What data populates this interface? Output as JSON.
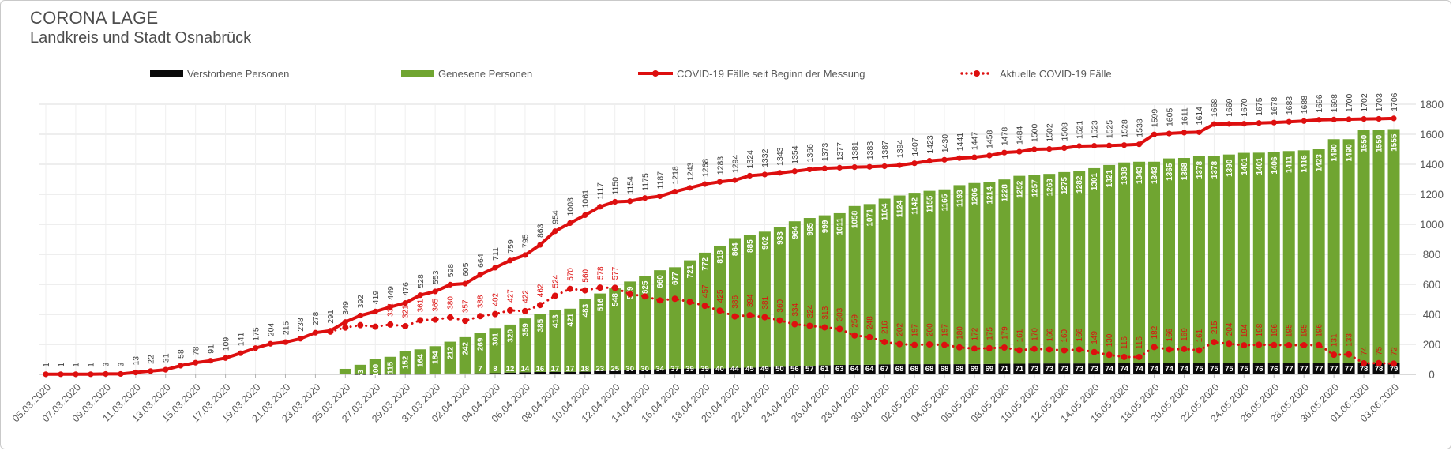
{
  "header": {
    "title": "CORONA LAGE",
    "subtitle": "Landkreis und Stadt Osnabrück"
  },
  "legend": {
    "deceased": "Verstorbene Personen",
    "recovered": "Genesene Personen",
    "total": "COVID-19 Fälle seit Beginn der Messung",
    "active": "Aktuelle COVID-19 Fälle"
  },
  "colors": {
    "bar_recovered": "#70a531",
    "bar_deceased": "#0a0a0a",
    "line_total": "#dd0f0f",
    "line_active": "#dd0f0f",
    "grid": "#dcdcdc",
    "grid_vertical": "#efefef",
    "axis_line": "#b3b3b3",
    "axis_text": "#595959",
    "line_label": "#404040",
    "bar_label": "#ffffff"
  },
  "chart_data": {
    "type": "combo-stacked-bar-line",
    "title": "CORONA LAGE - Landkreis und Stadt Osnabrück",
    "ylim": [
      0,
      1800
    ],
    "y_ticks": [
      0,
      200,
      400,
      600,
      800,
      1000,
      1200,
      1400,
      1600,
      1800
    ],
    "n_points": 91,
    "x_tick_every": 2,
    "x_tick_labels": [
      "05.03.2020",
      "07.03.2020",
      "09.03.2020",
      "11.03.2020",
      "13.03.2020",
      "15.03.2020",
      "17.03.2020",
      "19.03.2020",
      "21.03.2020",
      "23.03.2020",
      "25.03.2020",
      "27.03.2020",
      "29.03.2020",
      "31.03.2020",
      "02.04.2020",
      "04.04.2020",
      "06.04.2020",
      "08.04.2020",
      "10.04.2020",
      "12.04.2020",
      "14.04.2020",
      "16.04.2020",
      "18.04.2020",
      "20.04.2020",
      "22.04.2020",
      "24.04.2020",
      "26.04.2020",
      "28.04.2020",
      "30.04.2020",
      "02.05.2020",
      "04.05.2020",
      "06.05.2020",
      "08.05.2020",
      "10.05.2020",
      "12.05.2020",
      "14.05.2020",
      "16.05.2020",
      "18.05.2020",
      "20.05.2020",
      "22.05.2020",
      "24.05.2020",
      "26.05.2020",
      "28.05.2020",
      "30.05.2020",
      "01.06.2020",
      "03.06.2020"
    ],
    "series": [
      {
        "name": "COVID-19 Fälle seit Beginn der Messung",
        "type": "line",
        "start_index": 0,
        "values": [
          1,
          1,
          1,
          1,
          3,
          3,
          13,
          22,
          31,
          58,
          78,
          91,
          109,
          141,
          175,
          204,
          215,
          238,
          278,
          291,
          349,
          392,
          419,
          449,
          476,
          528,
          553,
          598,
          605,
          664,
          711,
          759,
          795,
          863,
          954,
          1008,
          1061,
          1117,
          1150,
          1154,
          1175,
          1187,
          1218,
          1243,
          1268,
          1283,
          1294,
          1324,
          1332,
          1343,
          1354,
          1366,
          1373,
          1377,
          1381,
          1383,
          1387,
          1394,
          1407,
          1423,
          1430,
          1441,
          1447,
          1458,
          1478,
          1484,
          1500,
          1502,
          1508,
          1521,
          1523,
          1525,
          1528,
          1533,
          1599,
          1605,
          1611,
          1614,
          1668,
          1669,
          1670,
          1675,
          1678,
          1683,
          1688,
          1696,
          1698,
          1700,
          1702,
          1703,
          1706
        ]
      },
      {
        "name": "Aktuelle COVID-19 Fälle",
        "type": "line-dotted",
        "start_index": 19,
        "values": [
          285,
          312,
          328,
          318,
          332,
          321,
          361,
          365,
          380,
          357,
          388,
          402,
          427,
          422,
          462,
          524,
          570,
          560,
          578,
          577,
          535,
          520,
          493,
          504,
          483,
          457,
          425,
          386,
          394,
          381,
          360,
          334,
          324,
          313,
          303,
          259,
          248,
          216,
          202,
          197,
          200,
          197,
          180,
          172,
          175,
          179,
          161,
          170,
          166,
          160,
          166,
          149,
          130,
          116,
          116,
          182,
          166,
          169,
          161,
          215,
          204,
          194,
          198,
          196,
          195,
          195,
          196,
          131,
          133,
          74,
          75,
          72
        ]
      },
      {
        "name": "Genesene Personen",
        "type": "bar",
        "stack_order": 1,
        "start_index": 20,
        "values": [
          37,
          63,
          100,
          115,
          152,
          164,
          184,
          212,
          242,
          269,
          301,
          320,
          359,
          385,
          413,
          421,
          483,
          516,
          548,
          589,
          625,
          660,
          677,
          721,
          772,
          818,
          864,
          885,
          902,
          933,
          964,
          985,
          999,
          1011,
          1058,
          1071,
          1104,
          1124,
          1142,
          1155,
          1165,
          1193,
          1206,
          1214,
          1228,
          1252,
          1257,
          1263,
          1275,
          1282,
          1301,
          1321,
          1338,
          1343,
          1343,
          1365,
          1368,
          1378,
          1378,
          1390,
          1401,
          1401,
          1406,
          1411,
          1416,
          1423,
          1490,
          1490,
          1550,
          1550,
          1555
        ]
      },
      {
        "name": "Verstorbene Personen",
        "type": "bar",
        "stack_order": 0,
        "start_index": 20,
        "values": [
          0,
          1,
          1,
          2,
          3,
          3,
          4,
          6,
          6,
          7,
          8,
          12,
          14,
          16,
          17,
          17,
          18,
          23,
          25,
          30,
          30,
          34,
          37,
          39,
          39,
          40,
          44,
          45,
          49,
          50,
          56,
          57,
          61,
          63,
          64,
          64,
          67,
          68,
          68,
          68,
          68,
          68,
          69,
          69,
          71,
          71,
          73,
          73,
          73,
          73,
          73,
          74,
          74,
          74,
          74,
          74,
          74,
          75,
          75,
          75,
          75,
          76,
          76,
          77,
          77,
          77,
          77,
          77,
          78,
          78,
          79
        ]
      }
    ],
    "label_rules": {
      "total_labels_from": 0,
      "recovered_labels_from": 21,
      "deceased_labels_from": 29,
      "active_labels_from": 23,
      "active_labels_hidden": [
        39,
        40,
        41,
        42,
        43
      ]
    },
    "legend_position": "top",
    "y_axis_position": "right",
    "grid": true
  }
}
